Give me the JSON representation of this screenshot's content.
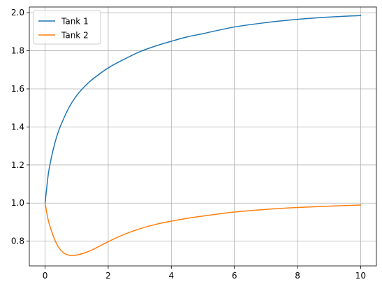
{
  "chart_data": {
    "type": "line",
    "title": "",
    "xlabel": "",
    "ylabel": "",
    "xlim": [
      -0.5,
      10.5
    ],
    "ylim": [
      0.67,
      2.03
    ],
    "xticks": [
      0,
      2,
      4,
      6,
      8,
      10
    ],
    "xtick_labels": [
      "0",
      "2",
      "4",
      "6",
      "8",
      "10"
    ],
    "yticks": [
      0.8,
      1.0,
      1.2,
      1.4,
      1.6,
      1.8,
      2.0
    ],
    "ytick_labels": [
      "0.8",
      "1.0",
      "1.2",
      "1.4",
      "1.6",
      "1.8",
      "2.0"
    ],
    "grid": true,
    "legend_position": "upper-left",
    "series": [
      {
        "name": "Tank 1",
        "color": "#1f77b4",
        "x": [
          0,
          0.1,
          0.2,
          0.3,
          0.4,
          0.5,
          0.75,
          1,
          1.25,
          1.5,
          2,
          2.5,
          3,
          3.5,
          4,
          4.5,
          5,
          6,
          7,
          8,
          9,
          10
        ],
        "y": [
          1.0,
          1.15,
          1.24,
          1.31,
          1.365,
          1.41,
          1.5,
          1.565,
          1.612,
          1.65,
          1.71,
          1.755,
          1.795,
          1.825,
          1.85,
          1.873,
          1.89,
          1.925,
          1.948,
          1.965,
          1.977,
          1.985
        ]
      },
      {
        "name": "Tank 2",
        "color": "#ff7f0e",
        "x": [
          0,
          0.1,
          0.2,
          0.3,
          0.4,
          0.5,
          0.6,
          0.7,
          0.8,
          0.9,
          1,
          1.25,
          1.5,
          2,
          2.5,
          3,
          3.5,
          4,
          4.5,
          5,
          6,
          7,
          8,
          9,
          10
        ],
        "y": [
          1.0,
          0.91,
          0.855,
          0.81,
          0.775,
          0.752,
          0.737,
          0.729,
          0.725,
          0.725,
          0.727,
          0.738,
          0.755,
          0.797,
          0.835,
          0.865,
          0.888,
          0.905,
          0.92,
          0.932,
          0.953,
          0.967,
          0.977,
          0.984,
          0.99
        ]
      }
    ]
  }
}
